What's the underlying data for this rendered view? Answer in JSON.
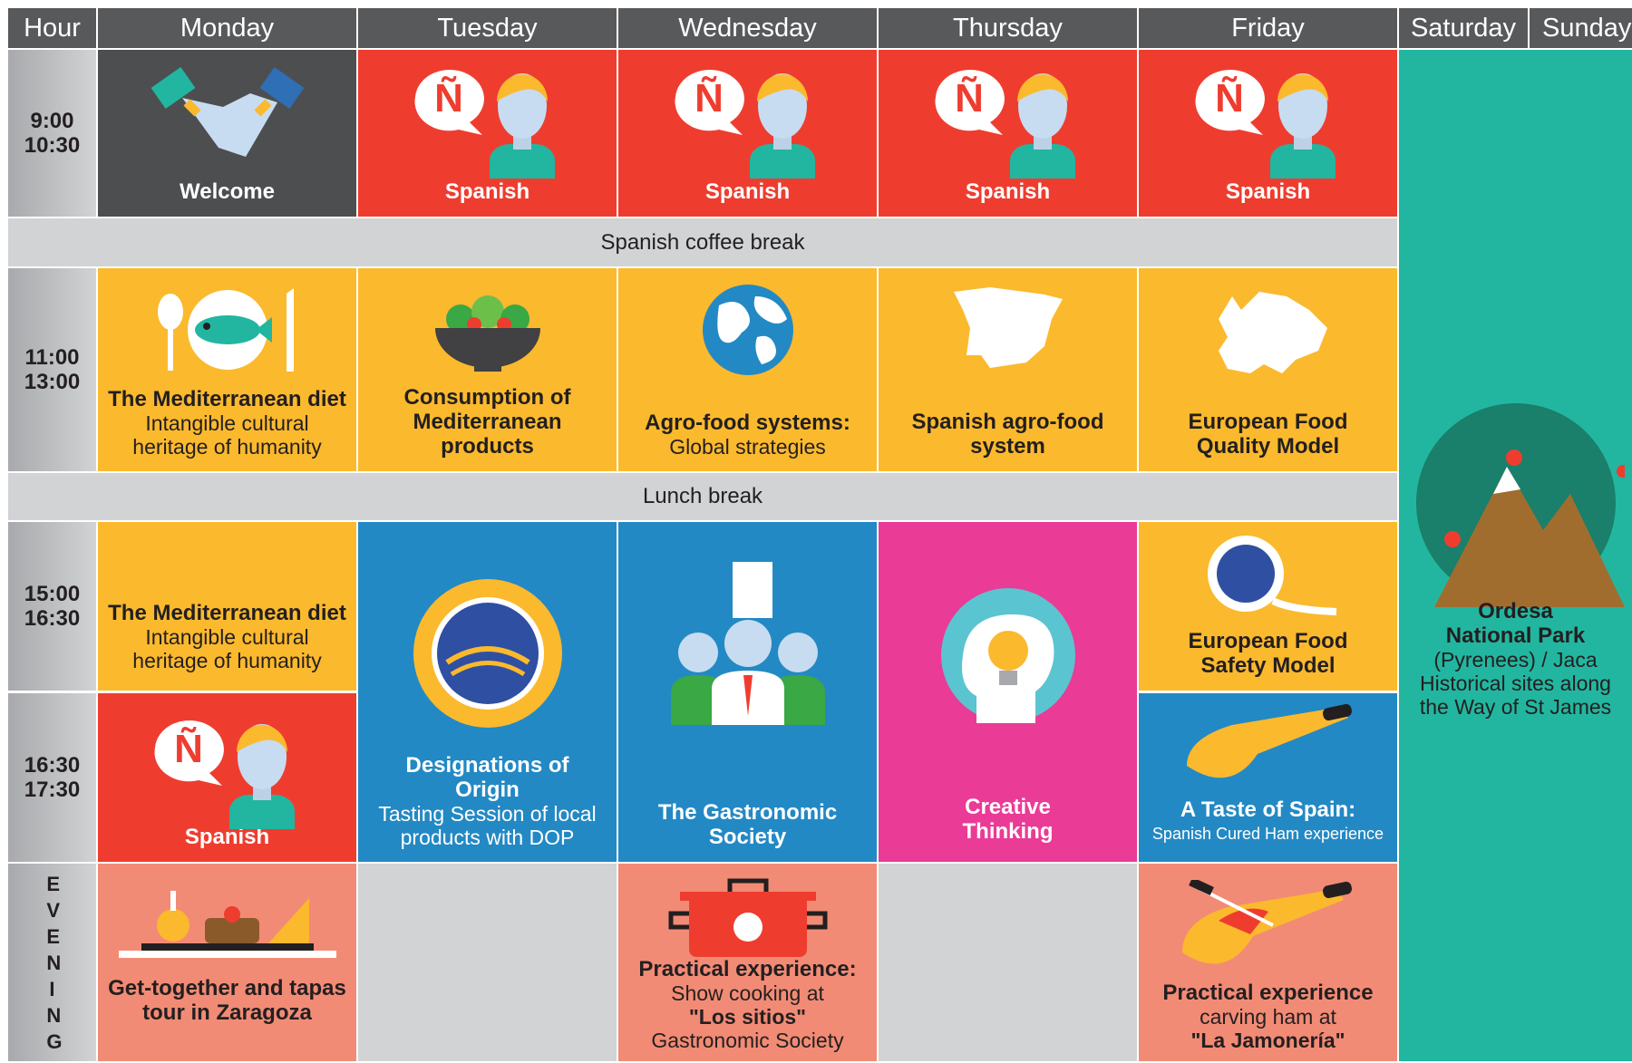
{
  "header": {
    "hour": "Hour",
    "days": [
      "Monday",
      "Tuesday",
      "Wednesday",
      "Thursday",
      "Friday",
      "Saturday",
      "Sunday"
    ]
  },
  "hours": [
    {
      "start": "9:00",
      "end": "10:30"
    },
    {
      "start": "11:00",
      "end": "13:00"
    },
    {
      "start": "15:00",
      "end": "16:30"
    },
    {
      "start": "16:30",
      "end": "17:30"
    }
  ],
  "evening": "EVENING",
  "breaks": [
    "Spanish coffee break",
    "Lunch break"
  ],
  "sessions": {
    "welcome": "Welcome",
    "spanish": "Spanish",
    "med_diet": {
      "title": "The Mediterranean diet",
      "subtitle": "Intangible cultural heritage of humanity"
    },
    "consumption": {
      "title": "Consumption of Mediterranean products"
    },
    "agrofood": {
      "title": "Agro-food systems:",
      "subtitle": "Global strategies"
    },
    "spanish_agrofood": {
      "title": "Spanish agro-food system"
    },
    "quality": {
      "title": "European Food Quality Model"
    },
    "designations": {
      "title": "Designations of Origin",
      "subtitle": "Tasting Session of local products with DOP"
    },
    "gastronomic": {
      "title": "The Gastronomic Society"
    },
    "creative": {
      "title": "Creative Thinking"
    },
    "safety": {
      "title": "European Food Safety Model"
    },
    "taste": {
      "title": "A Taste of Spain:",
      "subtitle": "Spanish Cured Ham experience"
    },
    "weekend": {
      "title": "Ordesa National Park",
      "subtitle": "(Pyrenees) / Jaca Historical sites along the Way of St James"
    },
    "tapas": {
      "title": "Get-together and tapas tour in Zaragoza"
    },
    "cooking": {
      "title": "Practical experience:",
      "lines": [
        "Show cooking at",
        "\"Los sitios\"",
        "Gastronomic Society"
      ]
    },
    "carving": {
      "title": "Practical experience",
      "lines": [
        "carving ham at",
        "\"La Jamonería\""
      ]
    }
  }
}
